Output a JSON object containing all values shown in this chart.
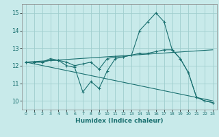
{
  "xlabel": "Humidex (Indice chaleur)",
  "ylabel": "",
  "bg_color": "#c8eaea",
  "grid_color": "#a0cece",
  "line_color": "#1a7070",
  "xlim": [
    -0.5,
    23.5
  ],
  "ylim": [
    9.5,
    15.5
  ],
  "yticks": [
    10,
    11,
    12,
    13,
    14,
    15
  ],
  "xticks": [
    0,
    1,
    2,
    3,
    4,
    5,
    6,
    7,
    8,
    9,
    10,
    11,
    12,
    13,
    14,
    15,
    16,
    17,
    18,
    19,
    20,
    21,
    22,
    23
  ],
  "line1_x": [
    0,
    1,
    2,
    3,
    4,
    5,
    6,
    7,
    8,
    9,
    10,
    11,
    12,
    13,
    14,
    15,
    16,
    17,
    18,
    19,
    20,
    21,
    22,
    23
  ],
  "line1_y": [
    12.2,
    12.2,
    12.2,
    12.3,
    12.3,
    12.0,
    11.9,
    10.5,
    11.1,
    10.7,
    11.7,
    12.4,
    12.5,
    12.6,
    14.0,
    14.5,
    15.0,
    14.5,
    12.9,
    12.4,
    11.6,
    10.2,
    10.0,
    9.9
  ],
  "line2_x": [
    0,
    1,
    2,
    3,
    4,
    5,
    6,
    7,
    8,
    9,
    10,
    11,
    12,
    13,
    14,
    15,
    16,
    17,
    18,
    19,
    20,
    21,
    22,
    23
  ],
  "line2_y": [
    12.2,
    12.2,
    12.2,
    12.4,
    12.3,
    12.2,
    12.0,
    12.1,
    12.2,
    11.8,
    12.4,
    12.5,
    12.5,
    12.6,
    12.7,
    12.7,
    12.8,
    12.9,
    12.9,
    12.4,
    11.6,
    10.2,
    10.0,
    9.9
  ],
  "line3_x": [
    0,
    23
  ],
  "line3_y": [
    12.2,
    10.0
  ],
  "line4_x": [
    0,
    23
  ],
  "line4_y": [
    12.2,
    12.9
  ]
}
